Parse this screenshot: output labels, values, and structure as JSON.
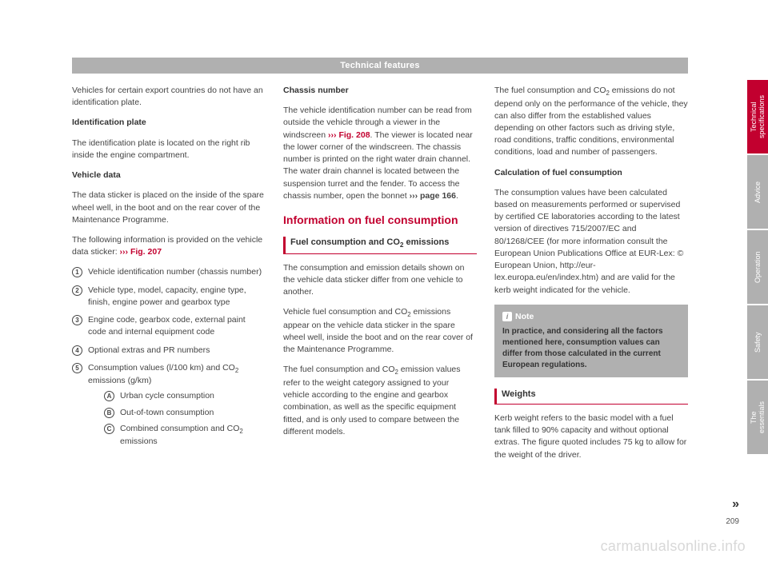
{
  "header": "Technical features",
  "page_number": "209",
  "continue_marker": "»",
  "watermark": "carmanualsonline.info",
  "col1": {
    "intro": "Vehicles for certain export countries do not have an identification plate.",
    "h1": "Identification plate",
    "p1": "The identification plate is located on the right rib inside the engine compartment.",
    "h2": "Vehicle data",
    "p2": "The data sticker is placed on the inside of the spare wheel well, in the boot and on the rear cover of the Maintenance Programme.",
    "p3a": "The following information is provided on the vehicle data sticker: ",
    "p3ref": "››› Fig. 207",
    "li1": "Vehicle identification number (chassis number)",
    "li2": "Vehicle type, model, capacity, engine type, finish, engine power and gearbox type",
    "li3": "Engine code, gearbox code, external paint code and internal equipment code",
    "li4": "Optional extras and PR numbers",
    "li5a": "Consumption values (l/100 km) and CO",
    "li5b": " emissions (g/km)",
    "subA": "Urban cycle consumption",
    "subB": "Out-of-town consumption",
    "subCa": "Combined consumption and CO",
    "subCb": " emissions"
  },
  "col2": {
    "h1": "Chassis number",
    "p1a": "The vehicle identification number can be read from outside the vehicle through a viewer in the windscreen ",
    "p1ref": "››› Fig. 208",
    "p1b": ". The viewer is located near the lower corner of the windscreen. The chassis number is printed on the right water drain channel. The water drain channel is located between the suspension turret and the fender. To access the chassis number, open the bonnet ",
    "p1ref2": "››› page 166",
    "p1c": ".",
    "section": "Information on fuel consumption",
    "sub1a": "Fuel consumption and CO",
    "sub1b": " emissions",
    "p2": "The consumption and emission details shown on the vehicle data sticker differ from one vehicle to another.",
    "p3a": "Vehicle fuel consumption and CO",
    "p3b": " emissions appear on the vehicle data sticker in the spare wheel well, inside the boot and on the rear cover of the Maintenance Programme.",
    "p4a": "The fuel consumption and CO",
    "p4b": " emission values refer to the weight category assigned to your vehicle according to the engine and gearbox combination, as well as the specific equipment fitted, and is only used to compare between the different models."
  },
  "col3": {
    "p1a": "The fuel consumption and CO",
    "p1b": " emissions do not depend only on the performance of the vehicle, they can also differ from the established values depending on other factors such as driving style, road conditions, traffic conditions, environmental conditions, load and number of passengers.",
    "h1": "Calculation of fuel consumption",
    "p2": "The consumption values have been calculated based on measurements performed or supervised by certified CE laboratories according to the latest version of directives 715/2007/EC and 80/1268/CEE (for more information consult the European Union Publications Office at EUR-Lex: © European Union, http://eur-lex.europa.eu/en/index.htm) and are valid for the kerb weight indicated for the vehicle.",
    "note_title": "Note",
    "note_body": "In practice, and considering all the factors mentioned here, consumption values can differ from those calculated in the current European regulations.",
    "sub2": "Weights",
    "p3": "Kerb weight refers to the basic model with a fuel tank filled to 90% capacity and without optional extras. The figure quoted includes 75 kg to allow for the weight of the driver."
  },
  "tabs": {
    "t1": "Technical specifications",
    "t2": "Advice",
    "t3": "Operation",
    "t4": "Safety",
    "t5": "The essentials"
  }
}
